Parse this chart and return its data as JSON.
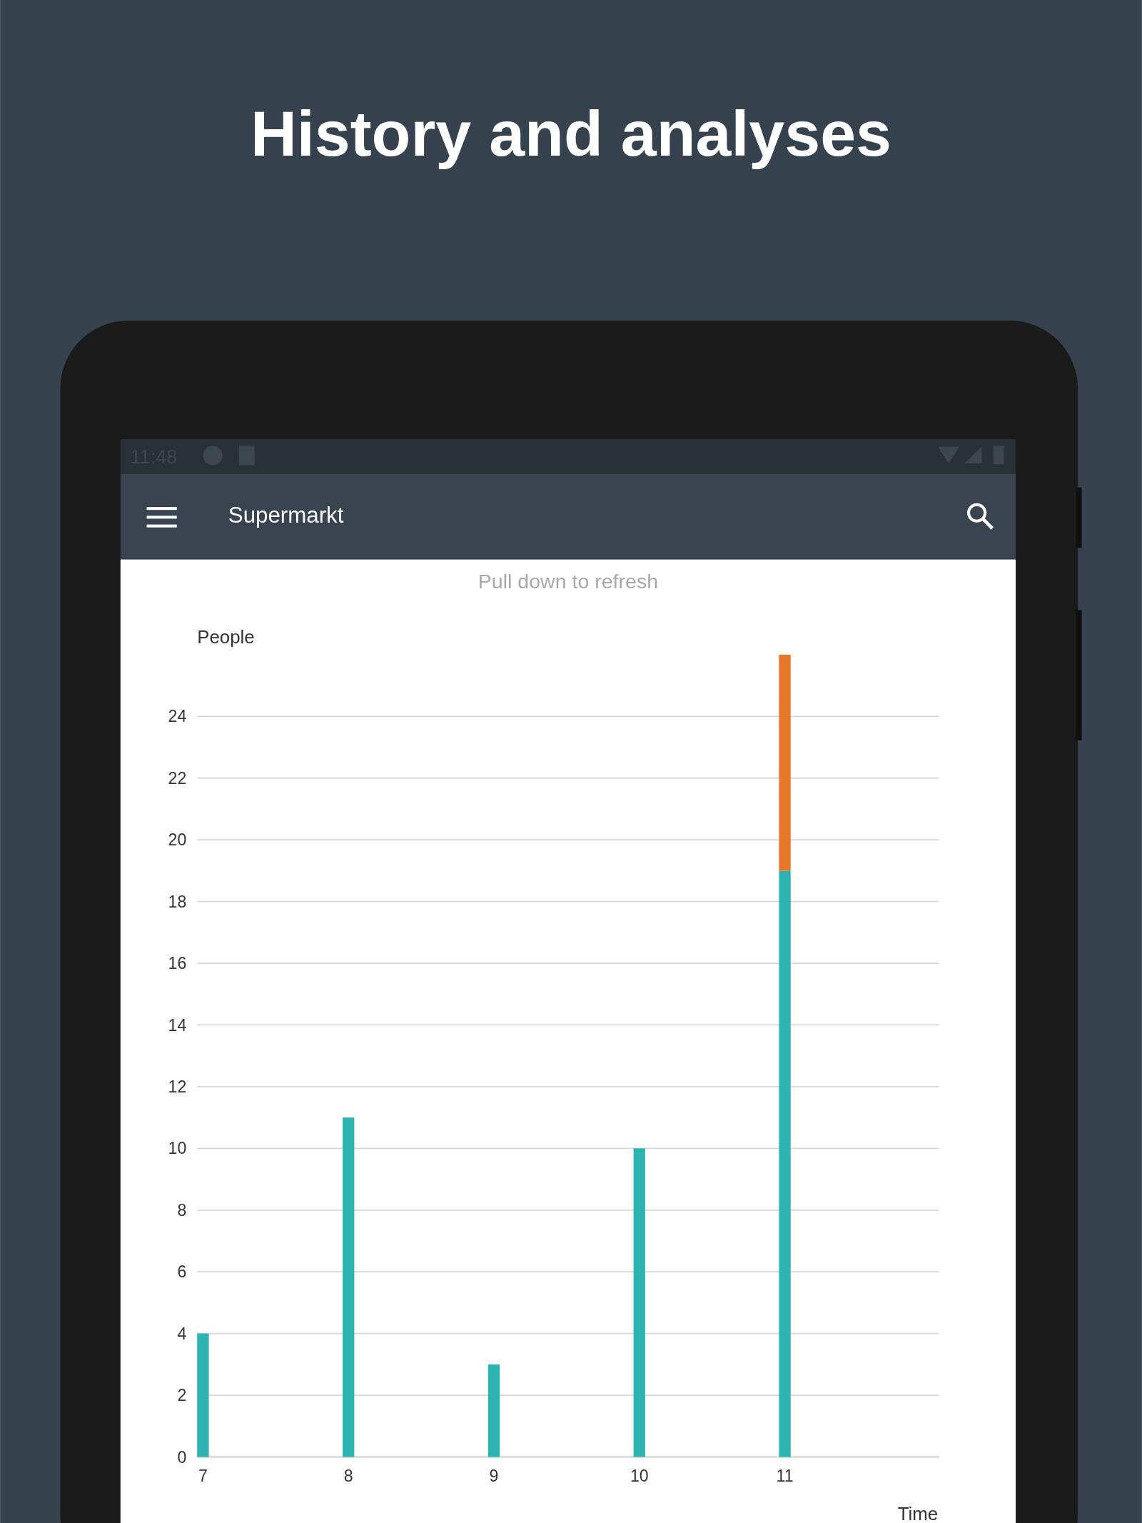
{
  "chart_data": {
    "type": "bar",
    "title": "History and analyses",
    "xlabel": "Time",
    "ylabel": "People",
    "annotations": [
      "11:48",
      "Supermarkt",
      "Pull down to refresh"
    ],
    "x": [
      7,
      8,
      9,
      10,
      11
    ],
    "series": [
      {
        "color": "#2db3b0",
        "values": [
          4,
          11,
          3,
          10,
          19
        ]
      },
      {
        "color": "#e8762b",
        "values": [
          null,
          null,
          null,
          null,
          7
        ]
      }
    ],
    "stacked": true,
    "xlim": [
      6.96,
      12.06
    ],
    "xticks": [
      7,
      8,
      9,
      10,
      11
    ],
    "ylim": [
      0,
      26
    ],
    "yticks": [
      0,
      2,
      4,
      6,
      8,
      10,
      12,
      14,
      16,
      18,
      20,
      22,
      24
    ],
    "grid": "y"
  }
}
